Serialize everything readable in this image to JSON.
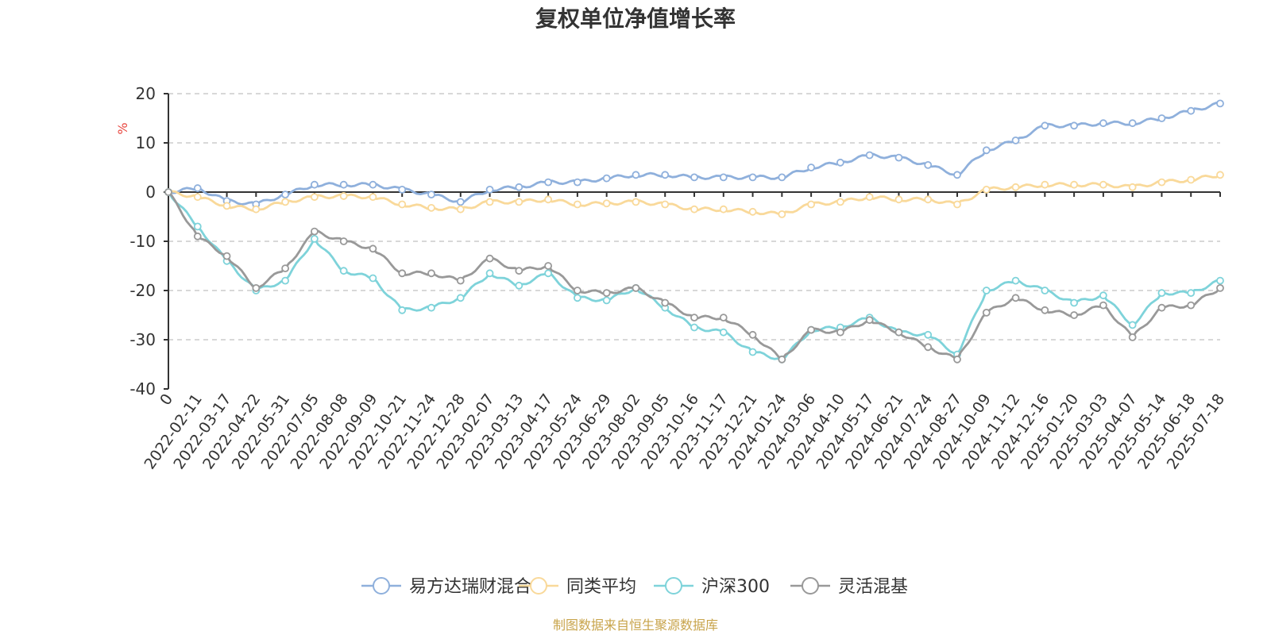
{
  "chart_data": {
    "type": "line",
    "title": "复权单位净值增长率",
    "ylabel": "%",
    "ylim": [
      -40,
      20
    ],
    "yticks": [
      20,
      10,
      0,
      -10,
      -20,
      -30,
      -40
    ],
    "grid": true,
    "legend_position": "bottom-center",
    "x": [
      "0",
      "2022-02-11",
      "2022-03-17",
      "2022-04-22",
      "2022-05-31",
      "2022-07-05",
      "2022-08-08",
      "2022-09-09",
      "2022-10-21",
      "2022-11-24",
      "2022-12-28",
      "2023-02-07",
      "2023-03-13",
      "2023-04-17",
      "2023-05-24",
      "2023-06-29",
      "2023-08-02",
      "2023-09-05",
      "2023-10-16",
      "2023-11-17",
      "2023-12-21",
      "2024-01-24",
      "2024-03-06",
      "2024-04-10",
      "2024-05-17",
      "2024-06-21",
      "2024-07-24",
      "2024-08-27",
      "2024-10-09",
      "2024-11-12",
      "2024-12-16",
      "2025-01-20",
      "2025-03-03",
      "2025-04-07",
      "2025-05-14",
      "2025-06-18",
      "2025-07-18"
    ],
    "series": [
      {
        "name": "易方达瑞财混合I",
        "color": "#8fb0dc",
        "values": [
          0,
          0.8,
          -1.8,
          -2.5,
          -0.5,
          1.5,
          1.5,
          1.5,
          0.5,
          -0.5,
          -2.0,
          0.5,
          1.0,
          2.0,
          2.0,
          2.8,
          3.5,
          3.5,
          3.0,
          3.0,
          3.0,
          3.0,
          5.0,
          6.0,
          7.5,
          7.0,
          5.5,
          3.5,
          8.5,
          10.5,
          13.5,
          13.5,
          14.0,
          14.0,
          15.0,
          16.5,
          18.0
        ]
      },
      {
        "name": "同类平均",
        "color": "#f9d99a",
        "values": [
          0,
          -1.0,
          -2.8,
          -3.5,
          -2.0,
          -1.0,
          -0.8,
          -1.0,
          -2.5,
          -3.2,
          -3.5,
          -2.0,
          -2.0,
          -1.5,
          -2.5,
          -2.3,
          -2.0,
          -2.5,
          -3.5,
          -3.5,
          -4.0,
          -4.5,
          -2.5,
          -2.0,
          -1.0,
          -1.5,
          -1.5,
          -2.5,
          0.5,
          1.0,
          1.5,
          1.5,
          1.5,
          1.0,
          2.0,
          2.5,
          3.5
        ]
      },
      {
        "name": "沪深300",
        "color": "#7ed3da",
        "values": [
          0,
          -7.0,
          -14.0,
          -20.0,
          -18.0,
          -9.5,
          -16.0,
          -17.5,
          -24.0,
          -23.5,
          -21.5,
          -16.5,
          -19.0,
          -16.5,
          -21.5,
          -22.0,
          -19.5,
          -23.5,
          -27.5,
          -28.5,
          -32.5,
          -34.0,
          -28.0,
          -27.5,
          -25.5,
          -28.5,
          -29.0,
          -33.0,
          -20.0,
          -18.0,
          -20.0,
          -22.5,
          -21.0,
          -27.0,
          -20.5,
          -20.5,
          -18.0
        ]
      },
      {
        "name": "灵活混基",
        "color": "#999999",
        "values": [
          0,
          -9.0,
          -13.0,
          -19.5,
          -15.5,
          -8.0,
          -10.0,
          -11.5,
          -16.5,
          -16.5,
          -18.0,
          -13.5,
          -16.0,
          -15.0,
          -20.0,
          -20.5,
          -19.5,
          -22.5,
          -25.5,
          -25.5,
          -29.0,
          -34.0,
          -28.0,
          -28.5,
          -26.0,
          -28.5,
          -31.5,
          -34.0,
          -24.5,
          -21.5,
          -24.0,
          -25.0,
          -23.0,
          -29.5,
          -23.5,
          -23.0,
          -19.5
        ]
      }
    ]
  },
  "footer": {
    "source": "制图数据来自恒生聚源数据库",
    "source_color": "#c8a44b"
  },
  "colors": {
    "unit": "#e8463f",
    "axis": "#333333",
    "grid": "#cccccc"
  }
}
